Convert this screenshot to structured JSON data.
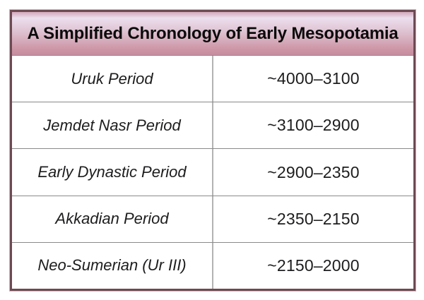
{
  "title": "A Simplified Chronology of Early Mesopotamia",
  "chart_data": {
    "type": "table",
    "title": "A Simplified Chronology of Early Mesopotamia",
    "rows": [
      {
        "period": "Uruk Period",
        "dates": "~4000–3100"
      },
      {
        "period": "Jemdet Nasr Period",
        "dates": "~3100–2900"
      },
      {
        "period": "Early Dynastic Period",
        "dates": "~2900–2350"
      },
      {
        "period": "Akkadian Period",
        "dates": "~2350–2150"
      },
      {
        "period": "Neo-Sumerian (Ur III)",
        "dates": "~2150–2000"
      }
    ]
  },
  "colors": {
    "border": "#6d4a53",
    "border_outer_edge": "#d3b2ba",
    "header_gradient_top": "#ecdfee",
    "header_gradient_bottom": "#c68da0",
    "grid_line_horizontal": "#8a8a8a",
    "grid_line_vertical": "#b3b3b3",
    "title_text": "#0b0b0b",
    "body_text": "#1d1d1f",
    "background": "#ffffff"
  }
}
